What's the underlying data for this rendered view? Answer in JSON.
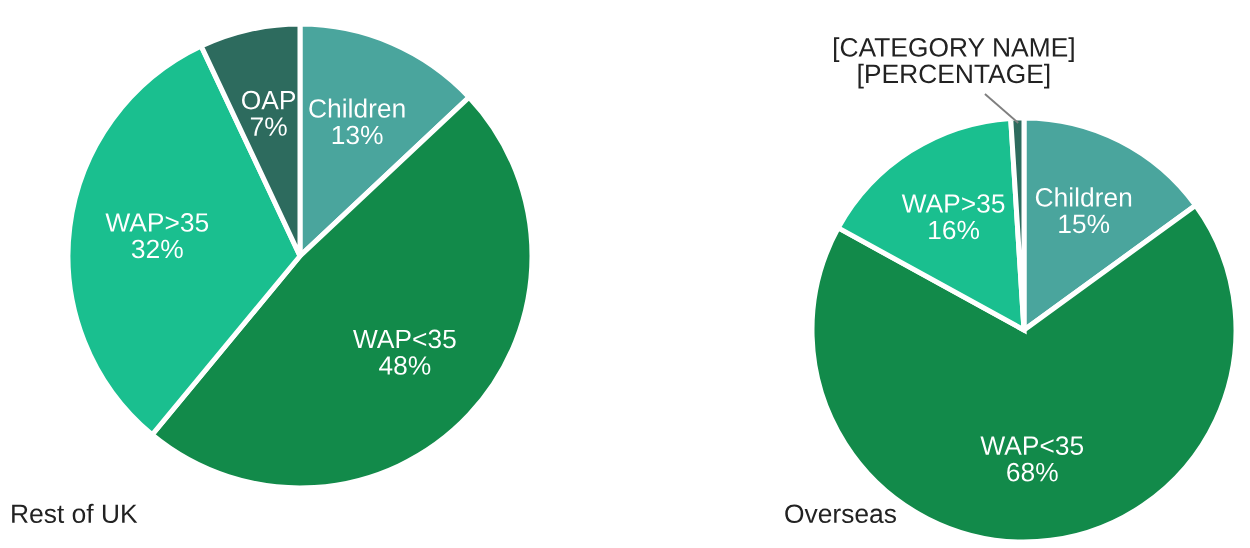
{
  "chart_data": [
    {
      "type": "pie",
      "title": "Rest of UK",
      "categories": [
        "Children",
        "WAP<35",
        "WAP>35",
        "OAP"
      ],
      "values": [
        13,
        48,
        32,
        7
      ],
      "colors": [
        "#4aa59d",
        "#128a4a",
        "#1abf8f",
        "#2d6b5e"
      ],
      "value_labels": [
        "13%",
        "48%",
        "32%",
        "7%"
      ]
    },
    {
      "type": "pie",
      "title": "Overseas",
      "categories": [
        "Children",
        "WAP<35",
        "WAP>35",
        "[CATEGORY NAME]"
      ],
      "values": [
        15,
        68,
        16,
        1
      ],
      "colors": [
        "#4aa59d",
        "#128a4a",
        "#1abf8f",
        "#2d6b5e"
      ],
      "value_labels": [
        "15%",
        "68%",
        "16%",
        "[PERCENTAGE]"
      ]
    }
  ]
}
